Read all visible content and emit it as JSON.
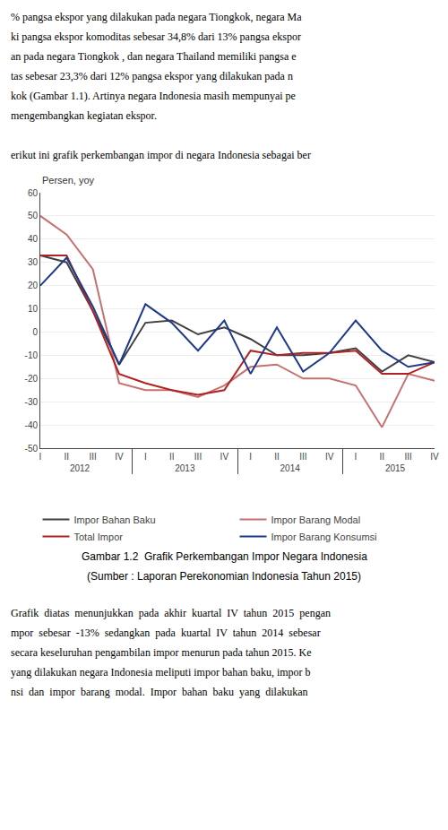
{
  "chart_data": {
    "type": "line",
    "title": "Gambar 1.2  Grafik Perkembangan Impor Negara Indonesia",
    "subtitle": "(Sumber : Laporan Perekonomian Indonesia Tahun 2015)",
    "ylabel": "Persen, yoy",
    "categories": [
      "I",
      "II",
      "III",
      "IV",
      "I",
      "II",
      "III",
      "IV",
      "I",
      "II",
      "III",
      "IV",
      "I",
      "II",
      "III",
      "IV"
    ],
    "groups": [
      "2012",
      "2013",
      "2014",
      "2015"
    ],
    "series": [
      {
        "name": "Impor Bahan Baku",
        "color": "#404040",
        "values": [
          33,
          30,
          9,
          -14,
          4,
          5,
          -1,
          2,
          -3,
          -10,
          -10,
          -9,
          -7,
          -17,
          -10,
          -13
        ]
      },
      {
        "name": "Impor Barang Modal",
        "color": "#C87070",
        "values": [
          50,
          42,
          27,
          -22,
          -25,
          -25,
          -28,
          -23,
          -15,
          -14,
          -20,
          -20,
          -23,
          -41,
          -18,
          -21
        ]
      },
      {
        "name": "Total Impor",
        "color": "#B22222",
        "values": [
          33,
          33,
          9,
          -18,
          -22,
          -25,
          -27,
          -25,
          -8,
          -10,
          -9,
          -9,
          -8,
          -18,
          -18,
          -13
        ]
      },
      {
        "name": "Impor Barang Konsumsi",
        "color": "#1F3A8A",
        "values": [
          20,
          32,
          11,
          -14,
          12,
          4,
          -8,
          5,
          -18,
          2,
          -17,
          -9,
          5,
          -8,
          -15,
          -13
        ]
      }
    ],
    "ylim": [
      -50,
      60
    ],
    "yticks": [
      -50,
      -40,
      -30,
      -20,
      -10,
      0,
      10,
      20,
      30,
      40,
      50,
      60
    ],
    "grid": true,
    "legend": "bottom",
    "annotations": {
      "above": [
        "% pangsa ekspor yang dilakukan pada negara Tiongkok, negara Ma",
        "ki pangsa ekspor komoditas sebesar 34,8% dari 13% pangsa ekspor",
        "an pada negara Tiongkok , dan negara Thailand memiliki pangsa e",
        "tas sebesar 23,3% dari 12% pangsa ekspor yang dilakukan pada n",
        "kok (Gambar 1.1). Artinya negara Indonesia masih mempunyai pe",
        "mengembangkan kegiatan ekspor.",
        "erikut ini grafik perkembangan impor di negara Indonesia sebagai ber"
      ],
      "below": [
        "Grafik  diatas  menunjukkan  pada  akhir  kuartal  IV  tahun  2015  pengan",
        "mpor  sebesar  -13%  sedangkan  pada  kuartal  IV  tahun  2014  sebesar",
        "secara keseluruhan pengambilan impor menurun pada tahun 2015. Ke",
        "yang dilakukan negara Indonesia meliputi impor bahan baku, impor b",
        "nsi  dan  impor  barang  modal.  Impor  bahan  baku  yang  dilakukan"
      ]
    }
  }
}
